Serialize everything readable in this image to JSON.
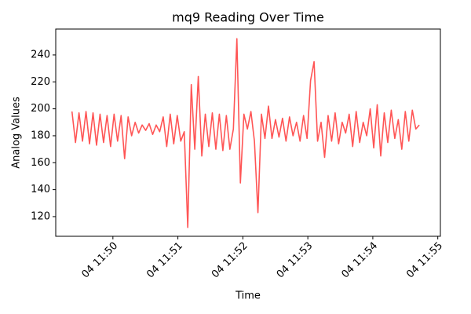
{
  "chart_data": {
    "type": "line",
    "title": "mq9 Reading Over Time",
    "x_label": "Time",
    "y_label": "Analog Values",
    "color": "#ff4c4c",
    "x": [
      49.37,
      49.424,
      49.478,
      49.532,
      49.586,
      49.64,
      49.694,
      49.748,
      49.802,
      49.856,
      49.91,
      49.964,
      50.018,
      50.072,
      50.126,
      50.18,
      50.234,
      50.288,
      50.342,
      50.396,
      50.45,
      50.504,
      50.558,
      50.612,
      50.666,
      50.72,
      50.774,
      50.828,
      50.882,
      50.936,
      50.99,
      51.044,
      51.098,
      51.152,
      51.206,
      51.26,
      51.314,
      51.368,
      51.422,
      51.476,
      51.53,
      51.584,
      51.638,
      51.692,
      51.746,
      51.8,
      51.854,
      51.908,
      51.962,
      52.016,
      52.07,
      52.124,
      52.178,
      52.232,
      52.286,
      52.34,
      52.394,
      52.448,
      52.502,
      52.556,
      52.61,
      52.664,
      52.718,
      52.772,
      52.826,
      52.88,
      52.934,
      52.988,
      53.042,
      53.096,
      53.15,
      53.204,
      53.258,
      53.312,
      53.366,
      53.42,
      53.474,
      53.528,
      53.582,
      53.636,
      53.69,
      53.744,
      53.798,
      53.852,
      53.906,
      53.96,
      54.014,
      54.068,
      54.122,
      54.176,
      54.23,
      54.284,
      54.338,
      54.392,
      54.446,
      54.5,
      54.554,
      54.608,
      54.662,
      54.716
    ],
    "values": [
      198,
      175,
      197,
      176,
      198,
      174,
      197,
      173,
      196,
      175,
      195,
      172,
      196,
      176,
      195,
      163,
      194,
      180,
      190,
      182,
      188,
      184,
      189,
      181,
      188,
      183,
      194,
      172,
      196,
      174,
      195,
      176,
      183,
      112,
      218,
      170,
      224,
      165,
      196,
      172,
      197,
      170,
      196,
      169,
      195,
      170,
      185,
      252,
      145,
      196,
      185,
      198,
      176,
      123,
      196,
      178,
      202,
      178,
      192,
      179,
      193,
      176,
      194,
      180,
      190,
      176,
      195,
      178,
      221,
      235,
      176,
      190,
      164,
      195,
      176,
      197,
      174,
      190,
      182,
      196,
      172,
      198,
      175,
      190,
      180,
      200,
      171,
      203,
      165,
      197,
      175,
      199,
      178,
      192,
      170,
      198,
      176,
      199,
      185,
      188
    ],
    "xlim": [
      49.12,
      55.04
    ],
    "xticks": [
      {
        "value": 50,
        "label": "04 11:50"
      },
      {
        "value": 51,
        "label": "04 11:51"
      },
      {
        "value": 52,
        "label": "04 11:52"
      },
      {
        "value": 53,
        "label": "04 11:53"
      },
      {
        "value": 54,
        "label": "04 11:54"
      },
      {
        "value": 55,
        "label": "04 11:55"
      }
    ],
    "ylim": [
      105.4,
      259.2
    ],
    "yticks": [
      120,
      140,
      160,
      180,
      200,
      220,
      240
    ]
  }
}
